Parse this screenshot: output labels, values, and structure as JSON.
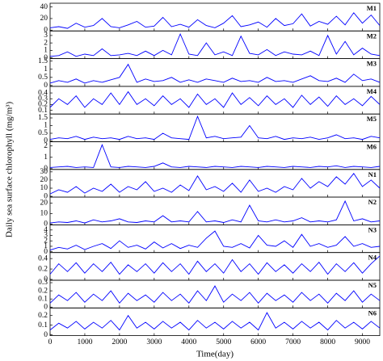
{
  "chart_data": [
    {
      "type": "line",
      "title": "M1",
      "ylabel": "Daily sea surface chlorophyll (mg/m³)",
      "color": "#0000ff",
      "xlim": [
        0,
        9500
      ],
      "ylim": [
        0,
        45
      ],
      "yticks": [
        0,
        20,
        40
      ],
      "x": [
        0,
        250,
        500,
        750,
        1000,
        1250,
        1500,
        1750,
        2000,
        2250,
        2500,
        2750,
        3000,
        3250,
        3500,
        3750,
        4000,
        4250,
        4500,
        4750,
        5000,
        5250,
        5500,
        5750,
        6000,
        6250,
        6500,
        6750,
        7000,
        7250,
        7500,
        7750,
        8000,
        8250,
        8500,
        8750,
        9000,
        9250,
        9500
      ],
      "values": [
        4,
        6,
        3,
        12,
        5,
        8,
        20,
        6,
        4,
        9,
        15,
        5,
        7,
        22,
        6,
        10,
        5,
        18,
        8,
        4,
        12,
        25,
        6,
        9,
        14,
        5,
        20,
        8,
        11,
        28,
        7,
        15,
        10,
        24,
        9,
        30,
        12,
        26,
        8
      ]
    },
    {
      "type": "line",
      "title": "M2",
      "color": "#0000ff",
      "xlim": [
        0,
        9500
      ],
      "ylim": [
        0,
        3.5
      ],
      "yticks": [
        0,
        1,
        2,
        3
      ],
      "x": [
        0,
        250,
        500,
        750,
        1000,
        1250,
        1500,
        1750,
        2000,
        2250,
        2500,
        2750,
        3000,
        3250,
        3500,
        3750,
        4000,
        4250,
        4500,
        4750,
        5000,
        5250,
        5500,
        5750,
        6000,
        6250,
        6500,
        6750,
        7000,
        7250,
        7500,
        7750,
        8000,
        8250,
        8500,
        8750,
        9000,
        9250,
        9500
      ],
      "values": [
        0.2,
        0.3,
        0.8,
        0.2,
        0.5,
        0.3,
        1.2,
        0.3,
        0.4,
        0.6,
        0.3,
        0.9,
        0.3,
        1.0,
        0.4,
        3.2,
        0.5,
        0.3,
        2.0,
        0.4,
        0.8,
        0.3,
        2.9,
        0.6,
        0.4,
        1.1,
        0.3,
        0.8,
        0.5,
        0.4,
        0.9,
        0.3,
        3.0,
        0.5,
        2.2,
        0.4,
        1.3,
        0.5,
        0.3
      ]
    },
    {
      "type": "line",
      "title": "M3",
      "color": "#0000ff",
      "xlim": [
        0,
        9500
      ],
      "ylim": [
        0,
        1.6
      ],
      "yticks": [
        0,
        0.5,
        1,
        1.5
      ],
      "x": [
        0,
        250,
        500,
        750,
        1000,
        1250,
        1500,
        1750,
        2000,
        2250,
        2500,
        2750,
        3000,
        3250,
        3500,
        3750,
        4000,
        4250,
        4500,
        4750,
        5000,
        5250,
        5500,
        5750,
        6000,
        6250,
        6500,
        6750,
        7000,
        7250,
        7500,
        7750,
        8000,
        8250,
        8500,
        8750,
        9000,
        9250,
        9500
      ],
      "values": [
        0.15,
        0.3,
        0.2,
        0.4,
        0.15,
        0.3,
        0.2,
        0.35,
        0.5,
        1.3,
        0.2,
        0.4,
        0.25,
        0.3,
        0.5,
        0.2,
        0.35,
        0.2,
        0.4,
        0.3,
        0.2,
        0.45,
        0.25,
        0.3,
        0.2,
        0.5,
        0.25,
        0.3,
        0.2,
        0.4,
        0.6,
        0.3,
        0.25,
        0.45,
        0.2,
        0.7,
        0.3,
        0.4,
        0.2
      ]
    },
    {
      "type": "line",
      "title": "M4",
      "color": "#0000ff",
      "xlim": [
        0,
        9500
      ],
      "ylim": [
        0.05,
        0.5
      ],
      "yticks": [
        0.1,
        0.2,
        0.3,
        0.4
      ],
      "x": [
        0,
        250,
        500,
        750,
        1000,
        1250,
        1500,
        1750,
        2000,
        2250,
        2500,
        2750,
        3000,
        3250,
        3500,
        3750,
        4000,
        4250,
        4500,
        4750,
        5000,
        5250,
        5500,
        5750,
        6000,
        6250,
        6500,
        6750,
        7000,
        7250,
        7500,
        7750,
        8000,
        8250,
        8500,
        8750,
        9000,
        9250,
        9500
      ],
      "values": [
        0.15,
        0.3,
        0.2,
        0.35,
        0.15,
        0.3,
        0.2,
        0.4,
        0.2,
        0.42,
        0.2,
        0.3,
        0.18,
        0.35,
        0.2,
        0.3,
        0.15,
        0.38,
        0.2,
        0.3,
        0.15,
        0.4,
        0.2,
        0.32,
        0.18,
        0.35,
        0.2,
        0.3,
        0.15,
        0.36,
        0.2,
        0.33,
        0.17,
        0.35,
        0.2,
        0.3,
        0.18,
        0.34,
        0.2
      ]
    },
    {
      "type": "line",
      "title": "M5",
      "color": "#0000ff",
      "xlim": [
        0,
        9500
      ],
      "ylim": [
        0,
        1.7
      ],
      "yticks": [
        0,
        0.5,
        1,
        1.5
      ],
      "x": [
        0,
        250,
        500,
        750,
        1000,
        1250,
        1500,
        1750,
        2000,
        2250,
        2500,
        2750,
        3000,
        3250,
        3500,
        3750,
        4000,
        4250,
        4500,
        4750,
        5000,
        5250,
        5500,
        5750,
        6000,
        6250,
        6500,
        6750,
        7000,
        7250,
        7500,
        7750,
        8000,
        8250,
        8500,
        8750,
        9000,
        9250,
        9500
      ],
      "values": [
        0.1,
        0.2,
        0.15,
        0.3,
        0.1,
        0.25,
        0.15,
        0.2,
        0.1,
        0.3,
        0.15,
        0.2,
        0.1,
        0.5,
        0.2,
        0.15,
        0.1,
        1.6,
        0.2,
        0.3,
        0.15,
        0.2,
        0.25,
        1.0,
        0.2,
        0.15,
        0.3,
        0.1,
        0.2,
        0.15,
        0.25,
        0.1,
        0.2,
        0.4,
        0.15,
        0.2,
        0.1,
        0.3,
        0.2
      ]
    },
    {
      "type": "line",
      "title": "M6",
      "color": "#0000ff",
      "xlim": [
        0,
        9500
      ],
      "ylim": [
        0,
        2.3
      ],
      "yticks": [
        0,
        1,
        2
      ],
      "x": [
        0,
        250,
        500,
        750,
        1000,
        1250,
        1500,
        1750,
        2000,
        2250,
        2500,
        2750,
        3000,
        3250,
        3500,
        3750,
        4000,
        4250,
        4500,
        4750,
        5000,
        5250,
        5500,
        5750,
        6000,
        6250,
        6500,
        6750,
        7000,
        7250,
        7500,
        7750,
        8000,
        8250,
        8500,
        8750,
        9000,
        9250,
        9500
      ],
      "values": [
        0.1,
        0.15,
        0.2,
        0.1,
        0.15,
        0.1,
        2.1,
        0.15,
        0.1,
        0.2,
        0.15,
        0.1,
        0.2,
        0.5,
        0.15,
        0.1,
        0.2,
        0.15,
        0.1,
        0.2,
        0.15,
        0.1,
        0.2,
        0.15,
        0.1,
        0.2,
        0.15,
        0.1,
        0.2,
        0.15,
        0.1,
        0.2,
        0.15,
        0.25,
        0.1,
        0.2,
        0.15,
        0.1,
        0.2
      ]
    },
    {
      "type": "line",
      "title": "N1",
      "color": "#0000ff",
      "xlim": [
        0,
        9500
      ],
      "ylim": [
        0,
        32
      ],
      "yticks": [
        0,
        10,
        20,
        30
      ],
      "x": [
        0,
        250,
        500,
        750,
        1000,
        1250,
        1500,
        1750,
        2000,
        2250,
        2500,
        2750,
        3000,
        3250,
        3500,
        3750,
        4000,
        4250,
        4500,
        4750,
        5000,
        5250,
        5500,
        5750,
        6000,
        6250,
        6500,
        6750,
        7000,
        7250,
        7500,
        7750,
        8000,
        8250,
        8500,
        8750,
        9000,
        9250,
        9500
      ],
      "values": [
        3,
        8,
        5,
        12,
        4,
        10,
        6,
        15,
        5,
        12,
        8,
        18,
        6,
        10,
        5,
        14,
        7,
        25,
        8,
        12,
        6,
        16,
        5,
        20,
        6,
        10,
        5,
        12,
        8,
        22,
        10,
        18,
        12,
        24,
        15,
        28,
        12,
        20,
        10
      ]
    },
    {
      "type": "line",
      "title": "N2",
      "color": "#0000ff",
      "xlim": [
        0,
        9500
      ],
      "ylim": [
        0,
        25
      ],
      "yticks": [
        0,
        10,
        20
      ],
      "x": [
        0,
        250,
        500,
        750,
        1000,
        1250,
        1500,
        1750,
        2000,
        2250,
        2500,
        2750,
        3000,
        3250,
        3500,
        3750,
        4000,
        4250,
        4500,
        4750,
        5000,
        5250,
        5500,
        5750,
        6000,
        6250,
        6500,
        6750,
        7000,
        7250,
        7500,
        7750,
        8000,
        8250,
        8500,
        8750,
        9000,
        9250,
        9500
      ],
      "values": [
        1,
        2,
        1.5,
        3,
        1,
        4,
        2,
        3,
        5,
        2,
        1.5,
        3,
        2,
        8,
        2,
        3,
        2,
        12,
        2,
        3,
        1.5,
        4,
        2,
        18,
        3,
        2,
        4,
        2,
        3,
        6,
        2,
        3,
        2,
        4,
        22,
        3,
        5,
        2,
        3
      ]
    },
    {
      "type": "line",
      "title": "N3",
      "color": "#0000ff",
      "xlim": [
        0,
        9500
      ],
      "ylim": [
        0,
        4.8
      ],
      "yticks": [
        0,
        1,
        2,
        3,
        4
      ],
      "x": [
        0,
        250,
        500,
        750,
        1000,
        1250,
        1500,
        1750,
        2000,
        2250,
        2500,
        2750,
        3000,
        3250,
        3500,
        3750,
        4000,
        4250,
        4500,
        4750,
        5000,
        5250,
        5500,
        5750,
        6000,
        6250,
        6500,
        6750,
        7000,
        7250,
        7500,
        7750,
        8000,
        8250,
        8500,
        8750,
        9000,
        9250,
        9500
      ],
      "values": [
        0.3,
        0.8,
        0.5,
        1.2,
        0.4,
        1.0,
        1.5,
        0.6,
        2.0,
        0.8,
        1.2,
        0.5,
        1.8,
        0.7,
        1.5,
        0.6,
        1.2,
        0.8,
        2.5,
        3.8,
        1.0,
        0.8,
        1.5,
        0.7,
        3.0,
        1.2,
        1.0,
        2.0,
        0.8,
        3.2,
        1.0,
        1.5,
        0.8,
        1.2,
        2.8,
        1.0,
        1.5,
        0.8,
        1.0
      ]
    },
    {
      "type": "line",
      "title": "N4",
      "color": "#0000ff",
      "xlim": [
        0,
        9500
      ],
      "ylim": [
        0,
        0.5
      ],
      "yticks": [
        0,
        0.2,
        0.4
      ],
      "x": [
        0,
        250,
        500,
        750,
        1000,
        1250,
        1500,
        1750,
        2000,
        2250,
        2500,
        2750,
        3000,
        3250,
        3500,
        3750,
        4000,
        4250,
        4500,
        4750,
        5000,
        5250,
        5500,
        5750,
        6000,
        6250,
        6500,
        6750,
        7000,
        7250,
        7500,
        7750,
        8000,
        8250,
        8500,
        8750,
        9000,
        9250,
        9500
      ],
      "values": [
        0.1,
        0.3,
        0.15,
        0.32,
        0.12,
        0.3,
        0.15,
        0.33,
        0.1,
        0.28,
        0.15,
        0.3,
        0.12,
        0.32,
        0.15,
        0.3,
        0.1,
        0.35,
        0.15,
        0.3,
        0.12,
        0.38,
        0.15,
        0.3,
        0.1,
        0.32,
        0.15,
        0.28,
        0.12,
        0.3,
        0.15,
        0.33,
        0.1,
        0.3,
        0.15,
        0.32,
        0.12,
        0.3,
        0.45
      ]
    },
    {
      "type": "line",
      "title": "N5",
      "color": "#0000ff",
      "xlim": [
        0,
        9500
      ],
      "ylim": [
        0,
        0.32
      ],
      "yticks": [
        0,
        0.1,
        0.2,
        0.3
      ],
      "x": [
        0,
        250,
        500,
        750,
        1000,
        1250,
        1500,
        1750,
        2000,
        2250,
        2500,
        2750,
        3000,
        3250,
        3500,
        3750,
        4000,
        4250,
        4500,
        4750,
        5000,
        5250,
        5500,
        5750,
        6000,
        6250,
        6500,
        6750,
        7000,
        7250,
        7500,
        7750,
        8000,
        8250,
        8500,
        8750,
        9000,
        9250,
        9500
      ],
      "values": [
        0.05,
        0.15,
        0.08,
        0.18,
        0.06,
        0.16,
        0.08,
        0.2,
        0.05,
        0.17,
        0.08,
        0.15,
        0.06,
        0.18,
        0.08,
        0.16,
        0.05,
        0.2,
        0.08,
        0.26,
        0.06,
        0.16,
        0.08,
        0.18,
        0.05,
        0.17,
        0.08,
        0.15,
        0.06,
        0.18,
        0.08,
        0.16,
        0.05,
        0.17,
        0.08,
        0.2,
        0.06,
        0.16,
        0.08
      ]
    },
    {
      "type": "line",
      "title": "N6",
      "xlabel": "Time(day)",
      "color": "#0000ff",
      "xlim": [
        0,
        9500
      ],
      "ylim": [
        0,
        0.27
      ],
      "yticks": [
        0,
        0.1,
        0.2
      ],
      "xticks": [
        0,
        1000,
        2000,
        3000,
        4000,
        5000,
        6000,
        7000,
        8000,
        9000
      ],
      "x": [
        0,
        250,
        500,
        750,
        1000,
        1250,
        1500,
        1750,
        2000,
        2250,
        2500,
        2750,
        3000,
        3250,
        3500,
        3750,
        4000,
        4250,
        4500,
        4750,
        5000,
        5250,
        5500,
        5750,
        6000,
        6250,
        6500,
        6750,
        7000,
        7250,
        7500,
        7750,
        8000,
        8250,
        8500,
        8750,
        9000,
        9250,
        9500
      ],
      "values": [
        0.05,
        0.12,
        0.07,
        0.14,
        0.06,
        0.13,
        0.07,
        0.15,
        0.05,
        0.2,
        0.07,
        0.13,
        0.06,
        0.14,
        0.07,
        0.13,
        0.05,
        0.15,
        0.07,
        0.13,
        0.06,
        0.14,
        0.07,
        0.13,
        0.05,
        0.23,
        0.07,
        0.13,
        0.06,
        0.14,
        0.07,
        0.13,
        0.05,
        0.15,
        0.07,
        0.13,
        0.06,
        0.14,
        0.07
      ]
    }
  ]
}
